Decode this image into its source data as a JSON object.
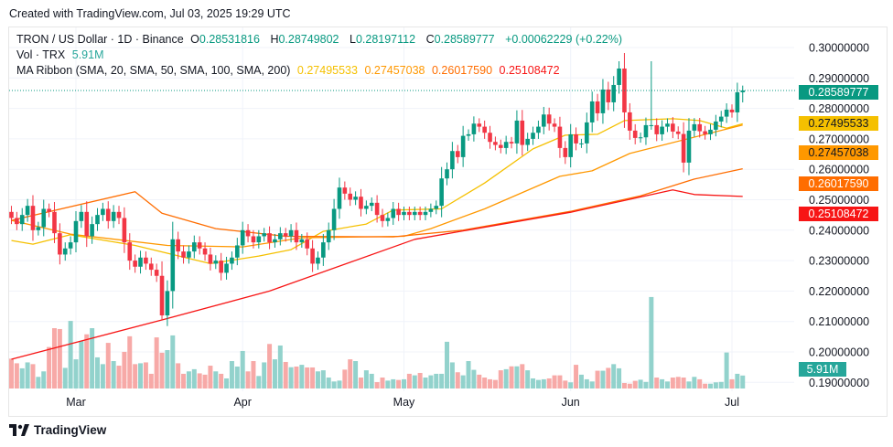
{
  "header": {
    "created": "Created with TradingView.com, Jul 03, 2025 19:29 UTC"
  },
  "legend": {
    "symbol": "TRON / US Dollar · 1D · Binance",
    "o_label": "O",
    "o": "0.28531816",
    "h_label": "H",
    "h": "0.28749802",
    "l_label": "L",
    "l": "0.28197112",
    "c_label": "C",
    "c": "0.28589777",
    "change": "+0.00062229 (+0.22%)",
    "vol_label": "Vol · TRX",
    "vol": "5.91M",
    "ma_label": "MA Ribbon (SMA, 20, SMA, 50, SMA, 100, SMA, 200)",
    "ma_values": [
      "0.27495533",
      "0.27457038",
      "0.26017590",
      "0.25108472"
    ]
  },
  "footer": {
    "logo_text": "TradingView"
  },
  "colors": {
    "up": "#089981",
    "down": "#f23645",
    "vol_up": "#92d2cc",
    "vol_down": "#f7a9a7",
    "sma20": "#f5c000",
    "sma50": "#ff9800",
    "sma100": "#ff6d00",
    "sma200": "#f71515"
  },
  "chart_data": {
    "type": "candlestick",
    "y_ticks": [
      "0.30000000",
      "0.29000000",
      "0.28000000",
      "0.27000000",
      "0.26000000",
      "0.25000000",
      "0.24000000",
      "0.23000000",
      "0.22000000",
      "0.21000000",
      "0.20000000",
      "0.19000000"
    ],
    "x_ticks": [
      {
        "label": "Mar",
        "date": "2025-03-01"
      },
      {
        "label": "Apr",
        "date": "2025-04-01"
      },
      {
        "label": "May",
        "date": "2025-05-01"
      },
      {
        "label": "Jun",
        "date": "2025-06-01"
      },
      {
        "label": "Jul",
        "date": "2025-07-01"
      }
    ],
    "last_candle": {
      "open": 0.28531816,
      "high": 0.28749802,
      "low": 0.28197112,
      "close": 0.28589777
    },
    "segments": [
      {
        "start": "2025-02-17",
        "close": [
          0.244,
          0.242,
          0.245,
          0.248,
          0.24,
          0.241,
          0.247,
          0.246,
          0.239,
          0.232,
          0.234,
          0.236
        ],
        "volume_m": [
          13.6,
          11.5,
          9.2,
          11.9,
          11.1,
          5.3,
          7.8,
          18.9,
          27.5,
          27.1,
          9.4,
          30.8
        ]
      },
      {
        "start": "2025-03-01",
        "close": [
          0.243,
          0.246,
          0.238,
          0.242,
          0.245,
          0.247,
          0.243,
          0.246,
          0.244,
          0.236,
          0.23,
          0.228,
          0.231,
          0.229,
          0.227,
          0.225,
          0.212,
          0.22,
          0.237,
          0.233,
          0.231,
          0.233,
          0.236,
          0.234,
          0.232,
          0.229,
          0.23,
          0.226,
          0.229,
          0.231,
          0.235
        ],
        "volume_m": [
          13.3,
          21.7,
          24.7,
          27.5,
          14.2,
          11.1,
          20.8,
          12.5,
          10.4,
          16.7,
          23.8,
          11.1,
          11.5,
          11.9,
          6.7,
          23.3,
          16.3,
          17.5,
          24.2,
          11.5,
          6.7,
          7.8,
          8.8,
          6.9,
          6.3,
          10.4,
          7.8,
          6.7,
          4.6,
          12.5,
          10
        ]
      },
      {
        "start": "2025-04-01",
        "close": [
          0.24,
          0.238,
          0.236,
          0.238,
          0.239,
          0.236,
          0.237,
          0.239,
          0.238,
          0.24,
          0.236,
          0.237,
          0.234,
          0.229,
          0.231,
          0.236,
          0.24,
          0.247,
          0.254,
          0.252,
          0.25,
          0.251,
          0.247,
          0.248,
          0.249,
          0.245,
          0.243,
          0.244,
          0.247,
          0.245
        ],
        "volume_m": [
          17.1,
          7.8,
          12.5,
          5.7,
          11.9,
          20.3,
          13.3,
          19.6,
          12.1,
          9.7,
          10,
          10.8,
          9.6,
          9.6,
          7.8,
          8.3,
          5,
          3.2,
          3.6,
          8.6,
          13.3,
          12.5,
          5,
          8.3,
          6.7,
          2.9,
          5,
          3.6,
          4.2,
          3.9
        ]
      },
      {
        "start": "2025-05-01",
        "close": [
          0.246,
          0.245,
          0.246,
          0.245,
          0.246,
          0.247,
          0.248,
          0.257,
          0.26,
          0.266,
          0.264,
          0.271,
          0.2715,
          0.275,
          0.274,
          0.272,
          0.269,
          0.268,
          0.267,
          0.269,
          0.2685,
          0.276,
          0.268,
          0.27,
          0.272,
          0.274,
          0.278,
          0.275,
          0.274,
          0.267,
          0.264
        ],
        "volume_m": [
          4.2,
          6.7,
          6,
          7.1,
          5,
          6,
          6.7,
          6.7,
          21.3,
          11.9,
          7.4,
          6,
          12.5,
          8.5,
          6.3,
          5,
          4.2,
          3.9,
          8.3,
          8.8,
          10.1,
          10.1,
          11.1,
          8.3,
          4.6,
          3.9,
          4.2,
          4.6,
          6,
          6,
          3.6
        ]
      },
      {
        "start": "2025-06-01",
        "close": [
          0.2715,
          0.2685,
          0.2685,
          0.2754,
          0.2823,
          0.2784,
          0.2862,
          0.282,
          0.2877,
          0.2931,
          0.2787,
          0.2727,
          0.2703,
          0.2705,
          0.2745,
          0.2745,
          0.2715,
          0.274,
          0.275,
          0.2724,
          0.2716,
          0.2622,
          0.2727,
          0.2748,
          0.2725,
          0.2715,
          0.273,
          0.2757,
          0.2773,
          0.2796
        ],
        "volume_m": [
          2.8,
          10.8,
          6.3,
          4.2,
          3.2,
          8.1,
          8.1,
          9.4,
          11.1,
          9.2,
          2.5,
          2.2,
          3.5,
          4.0,
          3.0,
          41.7,
          5,
          4.2,
          3.2,
          5,
          5.3,
          5,
          3.2,
          5.3,
          4.2,
          2.2,
          2.2,
          2.8,
          3.0,
          16.4
        ]
      },
      {
        "start": "2025-07-01",
        "close": [
          0.2787,
          0.2853,
          0.28589777
        ],
        "volume_m": [
          4.2,
          6.7,
          5.91
        ]
      }
    ],
    "notable_wicks": [
      {
        "date": "2025-06-16",
        "high": 0.2955
      },
      {
        "date": "2025-06-22",
        "low": 0.259
      },
      {
        "date": "2025-03-17",
        "low": 0.2105
      },
      {
        "date": "2025-06-10",
        "high": 0.2955
      }
    ],
    "moving_averages": [
      {
        "name": "SMA 20",
        "color": "#f5c000",
        "last": 0.27495533,
        "points": [
          [
            "2025-02-17",
            0.2366
          ],
          [
            "2025-02-21",
            0.2354
          ],
          [
            "2025-02-28",
            0.2385
          ],
          [
            "2025-03-12",
            0.235
          ],
          [
            "2025-03-26",
            0.229
          ],
          [
            "2025-04-04",
            0.2315
          ],
          [
            "2025-04-10",
            0.2336
          ],
          [
            "2025-04-16",
            0.2396
          ],
          [
            "2025-04-24",
            0.242
          ],
          [
            "2025-04-29",
            0.2466
          ],
          [
            "2025-05-08",
            0.247
          ],
          [
            "2025-05-16",
            0.2555
          ],
          [
            "2025-05-25",
            0.2667
          ],
          [
            "2025-05-31",
            0.2712
          ],
          [
            "2025-06-06",
            0.2715
          ],
          [
            "2025-06-11",
            0.276
          ],
          [
            "2025-06-20",
            0.2766
          ],
          [
            "2025-06-25",
            0.276
          ],
          [
            "2025-06-30",
            0.2735
          ],
          [
            "2025-07-03",
            0.27495533
          ]
        ]
      },
      {
        "name": "SMA 50",
        "color": "#ff9800",
        "last": 0.27457038,
        "points": [
          [
            "2025-02-17",
            0.2432
          ],
          [
            "2025-02-28",
            0.2387
          ],
          [
            "2025-03-18",
            0.235
          ],
          [
            "2025-04-01",
            0.2345
          ],
          [
            "2025-04-12",
            0.2375
          ],
          [
            "2025-05-01",
            0.238
          ],
          [
            "2025-05-06",
            0.2405
          ],
          [
            "2025-05-16",
            0.247
          ],
          [
            "2025-05-30",
            0.2577
          ],
          [
            "2025-06-05",
            0.2595
          ],
          [
            "2025-06-12",
            0.2652
          ],
          [
            "2025-07-03",
            0.27457038
          ]
        ]
      },
      {
        "name": "SMA 100",
        "color": "#ff6d00",
        "last": 0.2601759,
        "points": [
          [
            "2025-02-17",
            0.2432
          ],
          [
            "2025-03-12",
            0.2526
          ],
          [
            "2025-03-17",
            0.2456
          ],
          [
            "2025-03-27",
            0.2405
          ],
          [
            "2025-04-09",
            0.238
          ],
          [
            "2025-04-29",
            0.2378
          ],
          [
            "2025-05-12",
            0.24
          ],
          [
            "2025-06-01",
            0.2462
          ],
          [
            "2025-06-14",
            0.2513
          ],
          [
            "2025-06-24",
            0.2568
          ],
          [
            "2025-07-03",
            0.2601759
          ]
        ]
      },
      {
        "name": "SMA 200",
        "color": "#f71515",
        "last": 0.25108472,
        "points": [
          [
            "2025-02-17",
            0.1976
          ],
          [
            "2025-03-17",
            0.2105
          ],
          [
            "2025-04-06",
            0.22
          ],
          [
            "2025-05-03",
            0.237
          ],
          [
            "2025-06-01",
            0.2459
          ],
          [
            "2025-06-20",
            0.2532
          ],
          [
            "2025-06-24",
            0.2517
          ],
          [
            "2025-07-03",
            0.25108472
          ]
        ]
      }
    ],
    "price_badges": [
      {
        "value": "0.28589777",
        "price": 0.28589777,
        "bg": "#089981",
        "fg": "#ffffff"
      },
      {
        "value": "0.27495533",
        "price": 0.27495533,
        "bg": "#f5c000",
        "fg": "#131722"
      },
      {
        "value": "0.27457038",
        "price": 0.27457038,
        "bg": "#ff9800",
        "fg": "#131722"
      },
      {
        "value": "0.26017590",
        "price": 0.2601759,
        "bg": "#ff6d00",
        "fg": "#ffffff"
      },
      {
        "value": "0.25108472",
        "price": 0.25108472,
        "bg": "#f71515",
        "fg": "#ffffff"
      }
    ],
    "volume_badge": {
      "value": "5.91M",
      "bg": "#26a69a",
      "fg": "#ffffff"
    }
  }
}
